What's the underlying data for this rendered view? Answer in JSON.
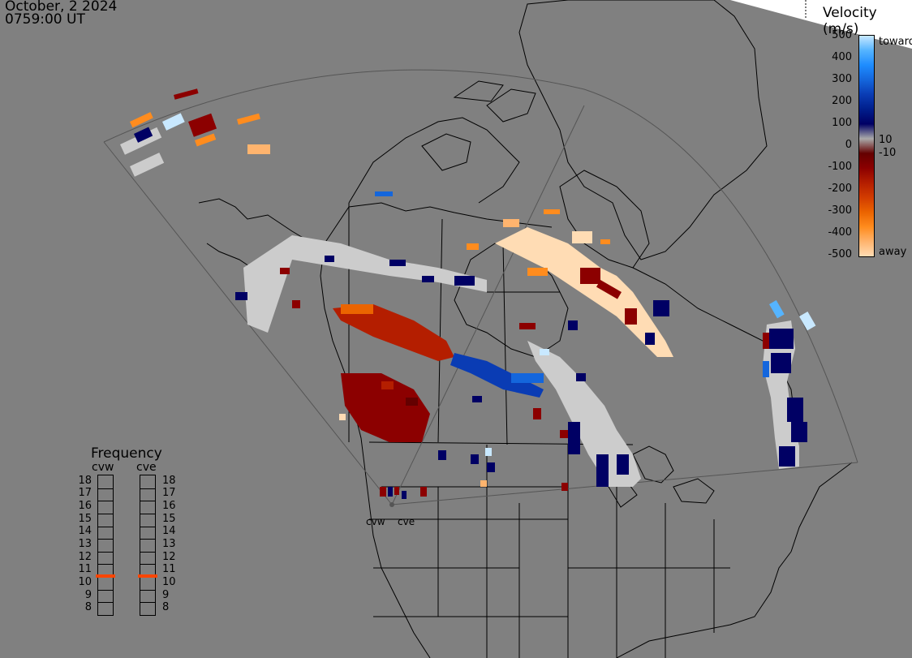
{
  "header": {
    "date": "October, 2 2024",
    "time": "0759:00 UT"
  },
  "colorbar": {
    "title": "Velocity (m/s)",
    "ticks": [
      "500",
      "400",
      "300",
      "200",
      "100",
      "0",
      "-100",
      "-200",
      "-300",
      "-400",
      "-500"
    ],
    "side_labels": {
      "top": "toward",
      "p10": "10",
      "m10": "-10",
      "bottom": "away"
    },
    "stops": [
      "#c8e8ff",
      "#55b4ff",
      "#1e8cff",
      "#1466dc",
      "#0a3cb4",
      "#001e8c",
      "#000064",
      "#aaaaaa",
      "#640000",
      "#8c0000",
      "#b41e00",
      "#d23c00",
      "#eb6400",
      "#ff8c1e",
      "#ffb46e",
      "#ffdcb4"
    ]
  },
  "frequency": {
    "title": "Frequency",
    "radars": [
      "cvw",
      "cve"
    ],
    "levels": [
      "18",
      "17",
      "16",
      "15",
      "14",
      "13",
      "12",
      "11",
      "10",
      "9",
      "8"
    ],
    "cvw_mhz": 10.6,
    "cve_mhz": 10.6,
    "marker_color": "#ff4500"
  },
  "sites": {
    "cvw": "cvw",
    "cve": "cve"
  },
  "colors": {
    "background": "#808080",
    "fov_line": "#555555",
    "coast": "#000000",
    "scatter_gray": "#cccccc"
  }
}
